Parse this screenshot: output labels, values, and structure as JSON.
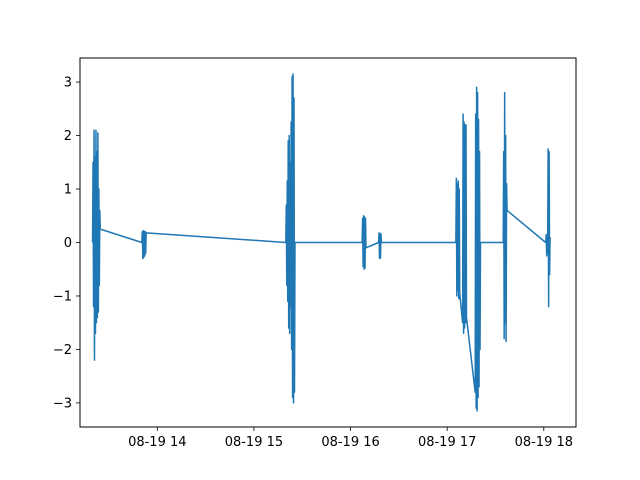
{
  "chart_data": {
    "type": "line",
    "title": "",
    "xlabel": "",
    "ylabel": "",
    "x_axis": {
      "type": "time",
      "range": [
        "08-19 13:12",
        "08-19 18:20"
      ],
      "tick_labels": [
        "08-19 14",
        "08-19 15",
        "08-19 16",
        "08-19 17",
        "08-19 18"
      ],
      "tick_values_hours": [
        14,
        15,
        16,
        17,
        18
      ]
    },
    "y_axis": {
      "range": [
        -3.45,
        3.45
      ],
      "ticks": [
        -3,
        -2,
        -1,
        0,
        1,
        2,
        3
      ]
    },
    "grid": false,
    "legend": "none",
    "series": [
      {
        "color": "#1f77b4",
        "points": [
          [
            "13:19:48",
            0.0
          ],
          [
            "13:20:06",
            1.5
          ],
          [
            "13:20:24",
            -1.2
          ],
          [
            "13:20:42",
            2.1
          ],
          [
            "13:21:00",
            -2.2
          ],
          [
            "13:21:18",
            1.6
          ],
          [
            "13:21:36",
            -1.7
          ],
          [
            "13:21:54",
            2.1
          ],
          [
            "13:22:12",
            -1.5
          ],
          [
            "13:22:30",
            1.7
          ],
          [
            "13:22:48",
            -1.4
          ],
          [
            "13:23:06",
            2.05
          ],
          [
            "13:23:24",
            -1.3
          ],
          [
            "13:23:42",
            1.0
          ],
          [
            "13:24:00",
            -0.8
          ],
          [
            "13:24:18",
            0.6
          ],
          [
            "13:24:36",
            0.25
          ],
          [
            "13:50:24",
            0.0
          ],
          [
            "13:50:42",
            0.2
          ],
          [
            "13:51:00",
            -0.3
          ],
          [
            "13:51:18",
            0.22
          ],
          [
            "13:51:36",
            -0.28
          ],
          [
            "13:51:54",
            0.2
          ],
          [
            "13:52:12",
            -0.25
          ],
          [
            "13:52:30",
            0.21
          ],
          [
            "13:52:48",
            -0.2
          ],
          [
            "13:53:06",
            0.18
          ],
          [
            "15:19:48",
            0.0
          ],
          [
            "15:20:06",
            0.7
          ],
          [
            "15:20:24",
            -0.8
          ],
          [
            "15:20:42",
            1.15
          ],
          [
            "15:21:00",
            -1.1
          ],
          [
            "15:21:18",
            1.9
          ],
          [
            "15:21:36",
            -1.6
          ],
          [
            "15:21:54",
            2.0
          ],
          [
            "15:22:12",
            -1.7
          ],
          [
            "15:22:30",
            1.5
          ],
          [
            "15:22:48",
            -1.2
          ],
          [
            "15:23:06",
            2.25
          ],
          [
            "15:23:24",
            -2.0
          ],
          [
            "15:23:42",
            3.1
          ],
          [
            "15:24:00",
            -2.9
          ],
          [
            "15:24:18",
            3.15
          ],
          [
            "15:24:36",
            -3.0
          ],
          [
            "15:24:54",
            2.7
          ],
          [
            "15:25:12",
            -2.8
          ],
          [
            "15:25:30",
            0.0
          ],
          [
            "16:07:12",
            0.0
          ],
          [
            "16:07:30",
            0.45
          ],
          [
            "16:07:48",
            -0.45
          ],
          [
            "16:08:06",
            0.5
          ],
          [
            "16:08:24",
            -0.5
          ],
          [
            "16:08:42",
            0.48
          ],
          [
            "16:09:00",
            -0.48
          ],
          [
            "16:09:18",
            0.45
          ],
          [
            "16:09:36",
            -0.1
          ],
          [
            "16:17:24",
            0.0
          ],
          [
            "16:17:42",
            0.18
          ],
          [
            "16:18:00",
            -0.3
          ],
          [
            "16:18:18",
            0.17
          ],
          [
            "16:18:36",
            -0.29
          ],
          [
            "16:18:54",
            0.16
          ],
          [
            "16:19:12",
            0.0
          ],
          [
            "17:05:24",
            0.0
          ],
          [
            "17:05:42",
            1.2
          ],
          [
            "17:06:00",
            -1.0
          ],
          [
            "17:06:18",
            1.1
          ],
          [
            "17:06:36",
            -0.9
          ],
          [
            "17:06:54",
            1.15
          ],
          [
            "17:07:12",
            -1.05
          ],
          [
            "17:07:30",
            1.0
          ],
          [
            "17:07:48",
            -0.95
          ],
          [
            "17:09:36",
            -1.5
          ],
          [
            "17:09:54",
            2.4
          ],
          [
            "17:10:12",
            -1.7
          ],
          [
            "17:10:30",
            2.25
          ],
          [
            "17:10:48",
            -1.6
          ],
          [
            "17:11:06",
            2.2
          ],
          [
            "17:11:24",
            -1.5
          ],
          [
            "17:11:42",
            2.2
          ],
          [
            "17:12:00",
            -1.4
          ],
          [
            "17:17:24",
            -2.8
          ],
          [
            "17:17:42",
            2.4
          ],
          [
            "17:18:00",
            -3.1
          ],
          [
            "17:18:18",
            2.9
          ],
          [
            "17:18:36",
            -3.15
          ],
          [
            "17:18:54",
            2.8
          ],
          [
            "17:19:12",
            -2.9
          ],
          [
            "17:19:30",
            2.3
          ],
          [
            "17:19:48",
            -2.7
          ],
          [
            "17:20:06",
            1.7
          ],
          [
            "17:20:24",
            -2.0
          ],
          [
            "17:20:42",
            0.0
          ],
          [
            "17:34:48",
            0.0
          ],
          [
            "17:35:06",
            1.7
          ],
          [
            "17:35:24",
            -1.8
          ],
          [
            "17:35:42",
            2.8
          ],
          [
            "17:36:00",
            -1.5
          ],
          [
            "17:36:18",
            2.0
          ],
          [
            "17:36:36",
            -1.85
          ],
          [
            "17:36:54",
            1.1
          ],
          [
            "17:37:12",
            0.6
          ],
          [
            "18:01:12",
            0.0
          ],
          [
            "18:01:30",
            0.15
          ],
          [
            "18:01:48",
            -0.25
          ],
          [
            "18:02:06",
            0.1
          ],
          [
            "18:02:24",
            -0.2
          ],
          [
            "18:02:42",
            1.75
          ],
          [
            "18:03:00",
            -1.2
          ],
          [
            "18:03:18",
            1.7
          ],
          [
            "18:03:36",
            -0.6
          ],
          [
            "18:03:54",
            0.1
          ]
        ]
      }
    ]
  }
}
